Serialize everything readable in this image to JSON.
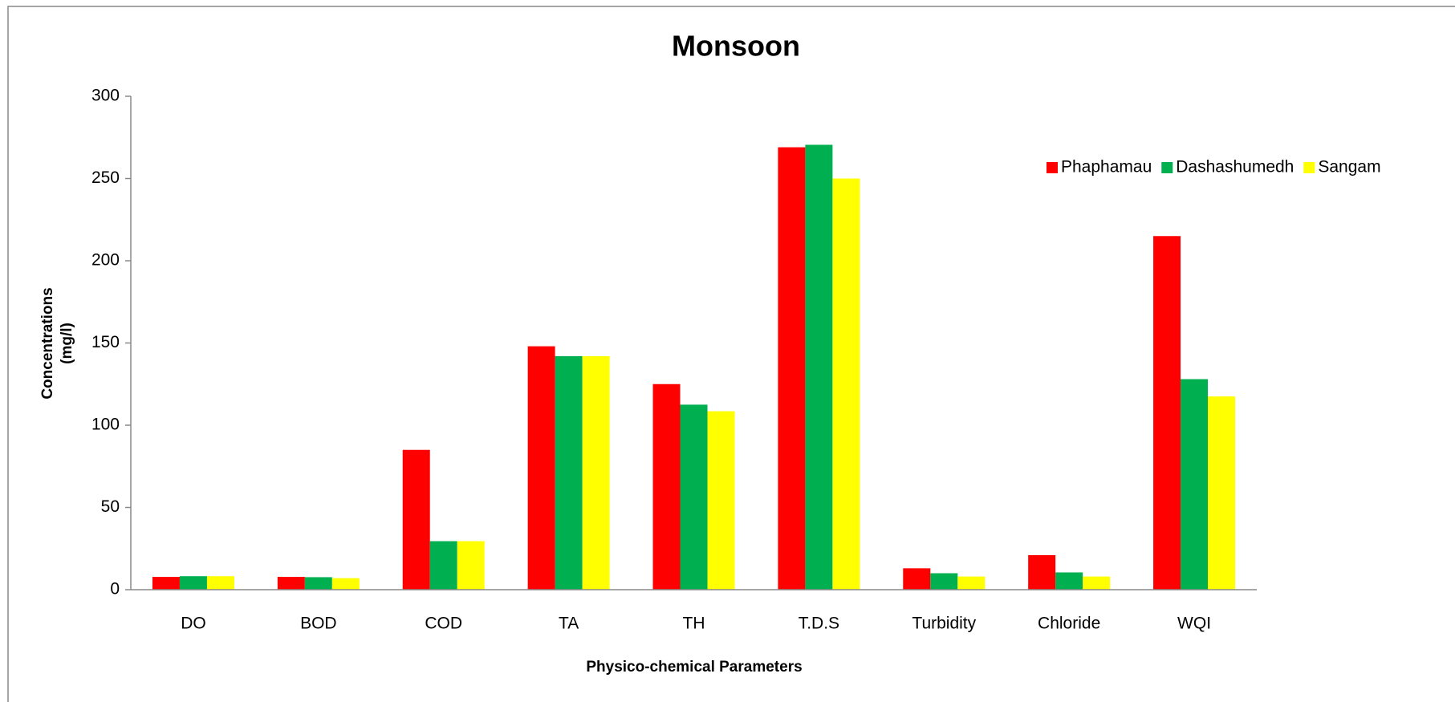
{
  "chart_data": {
    "type": "bar",
    "title": "Monsoon",
    "x_label": "Physico-chemical Parameters",
    "y_label": [
      "Concentrations",
      "(mg/l)"
    ],
    "categories": [
      "DO",
      "BOD",
      "COD",
      "TA",
      "TH",
      "T.D.S",
      "Turbidity",
      "Chloride",
      "WQI"
    ],
    "series": [
      {
        "name": "Phaphamau",
        "color": "#ff0000",
        "values": [
          7.8,
          7.8,
          85,
          148,
          125,
          269,
          13,
          21,
          215
        ]
      },
      {
        "name": "Dashashumedh",
        "color": "#00b050",
        "values": [
          8.2,
          7.6,
          29.5,
          142,
          112.5,
          270.5,
          10,
          10.5,
          128
        ]
      },
      {
        "name": "Sangam",
        "color": "#ffff00",
        "values": [
          8.2,
          7,
          29.5,
          142,
          108.5,
          250,
          8,
          8,
          117.5
        ]
      }
    ],
    "ylim": [
      0,
      300
    ],
    "yticks": [
      0,
      50,
      100,
      150,
      200,
      250,
      300
    ],
    "grid": false,
    "legend": "upper right"
  }
}
